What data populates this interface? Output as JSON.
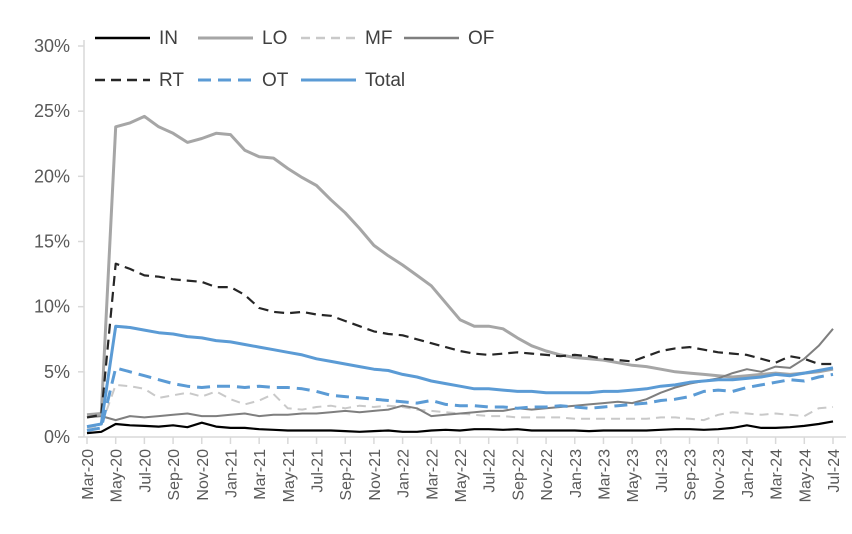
{
  "chart_data": {
    "type": "line",
    "title": "",
    "xlabel": "",
    "ylabel": "",
    "ylim": [
      0,
      30
    ],
    "y_tick_values": [
      0,
      5,
      10,
      15,
      20,
      25,
      30
    ],
    "y_tick_labels": [
      "0%",
      "5%",
      "10%",
      "15%",
      "20%",
      "25%",
      "30%"
    ],
    "x_tick_labels": [
      "Mar-20",
      "May-20",
      "Jul-20",
      "Sep-20",
      "Nov-20",
      "Jan-21",
      "Mar-21",
      "May-21",
      "Jul-21",
      "Sep-21",
      "Nov-21",
      "Jan-22",
      "Mar-22",
      "May-22",
      "Jul-22",
      "Sep-22",
      "Nov-22",
      "Jan-23",
      "Mar-23",
      "May-23",
      "Jul-23",
      "Sep-23",
      "Nov-23",
      "Jan-24",
      "Mar-24",
      "May-24",
      "Jul-24"
    ],
    "x_frequency": "monthly, labeled every 2 months",
    "n_points": 53,
    "grid": false,
    "legend_position": "top",
    "axis_color": "#d9d9d9",
    "tick_label_color": "#595959",
    "legend_text_color": "#404040",
    "series": [
      {
        "name": "IN",
        "color": "#000000",
        "style": "solid",
        "width": 2.2,
        "dash": "",
        "values": [
          0.3,
          0.4,
          1.0,
          0.9,
          0.85,
          0.8,
          0.9,
          0.75,
          1.1,
          0.8,
          0.7,
          0.7,
          0.6,
          0.55,
          0.5,
          0.5,
          0.5,
          0.5,
          0.45,
          0.4,
          0.45,
          0.5,
          0.4,
          0.4,
          0.5,
          0.55,
          0.5,
          0.6,
          0.6,
          0.55,
          0.6,
          0.5,
          0.5,
          0.5,
          0.5,
          0.45,
          0.5,
          0.5,
          0.5,
          0.5,
          0.55,
          0.6,
          0.6,
          0.55,
          0.6,
          0.7,
          0.9,
          0.7,
          0.7,
          0.75,
          0.85,
          1.0,
          1.2
        ]
      },
      {
        "name": "LO",
        "color": "#a6a6a6",
        "style": "solid",
        "width": 3,
        "dash": "",
        "values": [
          1.7,
          1.8,
          23.8,
          24.1,
          24.6,
          23.8,
          23.3,
          22.6,
          22.9,
          23.3,
          23.2,
          22.0,
          21.5,
          21.4,
          20.6,
          19.9,
          19.3,
          18.2,
          17.2,
          16.0,
          14.7,
          13.9,
          13.2,
          12.4,
          11.6,
          10.3,
          9.0,
          8.5,
          8.5,
          8.3,
          7.6,
          7.0,
          6.6,
          6.3,
          6.1,
          6.0,
          5.9,
          5.7,
          5.5,
          5.4,
          5.2,
          5.0,
          4.9,
          4.8,
          4.7,
          4.6,
          4.7,
          4.8,
          4.9,
          4.8,
          4.9,
          5.0,
          5.2
        ]
      },
      {
        "name": "MF",
        "color": "#c9c9c9",
        "style": "dashed",
        "width": 2,
        "dash": "9 6",
        "values": [
          0.7,
          0.9,
          4.0,
          3.9,
          3.7,
          3.0,
          3.2,
          3.4,
          3.1,
          3.5,
          2.9,
          2.5,
          2.8,
          3.3,
          2.2,
          2.1,
          2.3,
          2.4,
          2.2,
          2.4,
          2.3,
          2.4,
          2.3,
          2.1,
          2.0,
          1.9,
          1.8,
          1.7,
          1.6,
          1.6,
          1.5,
          1.5,
          1.5,
          1.5,
          1.4,
          1.4,
          1.4,
          1.4,
          1.4,
          1.4,
          1.5,
          1.5,
          1.4,
          1.3,
          1.7,
          1.9,
          1.8,
          1.7,
          1.8,
          1.7,
          1.6,
          2.2,
          2.3
        ]
      },
      {
        "name": "OF",
        "color": "#7f7f7f",
        "style": "solid",
        "width": 2,
        "dash": "",
        "values": [
          1.5,
          1.6,
          1.3,
          1.6,
          1.5,
          1.6,
          1.7,
          1.8,
          1.6,
          1.6,
          1.7,
          1.8,
          1.6,
          1.7,
          1.7,
          1.8,
          1.8,
          1.9,
          2.0,
          1.9,
          2.0,
          2.1,
          2.4,
          2.2,
          1.6,
          1.7,
          1.8,
          1.9,
          2.0,
          2.0,
          2.2,
          2.1,
          2.2,
          2.3,
          2.4,
          2.5,
          2.6,
          2.7,
          2.6,
          2.9,
          3.4,
          3.8,
          4.1,
          4.3,
          4.5,
          4.9,
          5.2,
          5.0,
          5.4,
          5.3,
          6.0,
          7.0,
          8.3
        ]
      },
      {
        "name": "RT",
        "color": "#262626",
        "style": "dashed",
        "width": 2.2,
        "dash": "10 6",
        "values": [
          1.5,
          1.7,
          13.3,
          12.9,
          12.4,
          12.3,
          12.1,
          12.0,
          11.9,
          11.5,
          11.5,
          10.9,
          9.9,
          9.6,
          9.5,
          9.6,
          9.4,
          9.3,
          8.9,
          8.5,
          8.1,
          7.9,
          7.8,
          7.5,
          7.2,
          6.9,
          6.6,
          6.4,
          6.3,
          6.4,
          6.5,
          6.4,
          6.3,
          6.2,
          6.3,
          6.2,
          6.0,
          5.9,
          5.8,
          6.2,
          6.6,
          6.8,
          6.9,
          6.7,
          6.5,
          6.4,
          6.3,
          6.0,
          5.7,
          6.2,
          6.0,
          5.6,
          5.6
        ]
      },
      {
        "name": "OT",
        "color": "#5b9bd5",
        "style": "dashed",
        "width": 3,
        "dash": "13 7",
        "values": [
          0.5,
          0.7,
          5.3,
          5.0,
          4.7,
          4.4,
          4.1,
          3.9,
          3.8,
          3.9,
          3.9,
          3.8,
          3.9,
          3.8,
          3.8,
          3.7,
          3.5,
          3.2,
          3.1,
          3.0,
          2.9,
          2.8,
          2.7,
          2.6,
          2.8,
          2.5,
          2.4,
          2.4,
          2.3,
          2.3,
          2.2,
          2.3,
          2.3,
          2.4,
          2.3,
          2.2,
          2.3,
          2.4,
          2.5,
          2.6,
          2.8,
          2.9,
          3.1,
          3.5,
          3.6,
          3.5,
          3.8,
          4.0,
          4.2,
          4.4,
          4.3,
          4.6,
          4.8
        ]
      },
      {
        "name": "Total",
        "color": "#5b9bd5",
        "style": "solid",
        "width": 3,
        "dash": "",
        "values": [
          0.8,
          1.0,
          8.5,
          8.4,
          8.2,
          8.0,
          7.9,
          7.7,
          7.6,
          7.4,
          7.3,
          7.1,
          6.9,
          6.7,
          6.5,
          6.3,
          6.0,
          5.8,
          5.6,
          5.4,
          5.2,
          5.1,
          4.8,
          4.6,
          4.3,
          4.1,
          3.9,
          3.7,
          3.7,
          3.6,
          3.5,
          3.5,
          3.4,
          3.4,
          3.4,
          3.4,
          3.5,
          3.5,
          3.6,
          3.7,
          3.9,
          4.0,
          4.2,
          4.3,
          4.4,
          4.4,
          4.5,
          4.6,
          4.8,
          4.7,
          4.9,
          5.1,
          5.3
        ]
      }
    ],
    "draw_order": [
      2,
      1,
      3,
      4,
      5,
      6,
      0
    ]
  }
}
